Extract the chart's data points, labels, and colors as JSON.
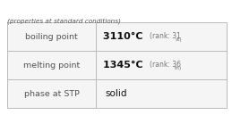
{
  "rows": [
    {
      "label": "phase at STP",
      "value": "solid",
      "rank": "",
      "rank_suffix": ""
    },
    {
      "label": "melting point",
      "value": "1345°C",
      "rank": "36",
      "rank_suffix": "th"
    },
    {
      "label": "boiling point",
      "value": "3110°C",
      "rank": "31",
      "rank_suffix": "st"
    }
  ],
  "footer": "(properties at standard conditions)",
  "bg_color": "#f5f5f5",
  "border_color": "#bbbbbb",
  "label_color": "#555555",
  "value_color": "#111111",
  "rank_color": "#777777",
  "footer_color": "#555555"
}
